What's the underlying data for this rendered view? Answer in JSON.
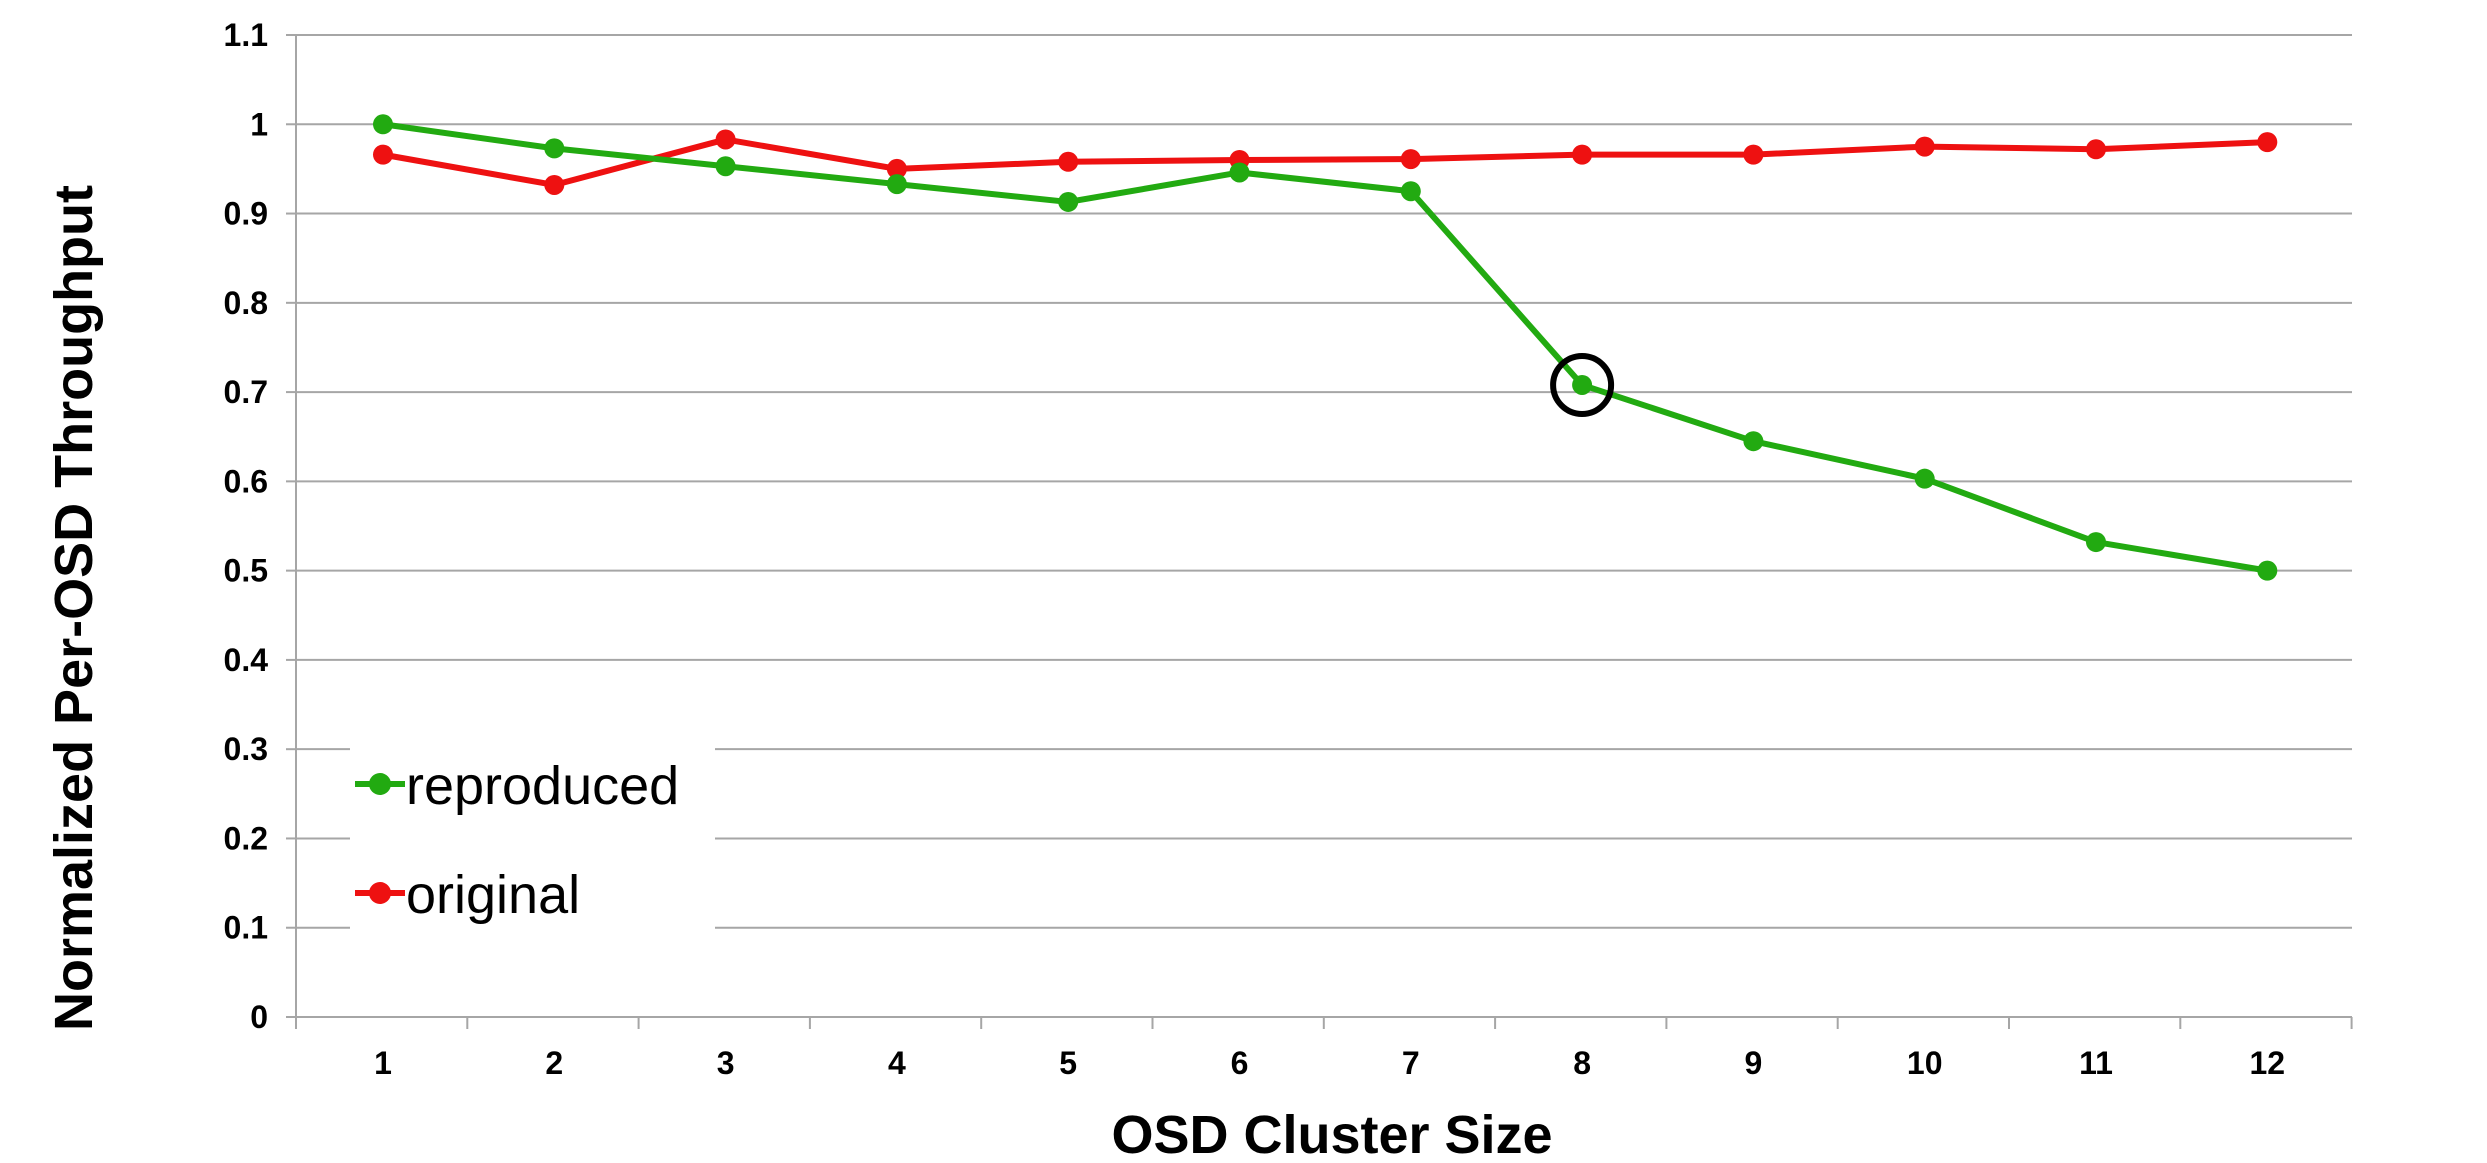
{
  "chart_data": {
    "type": "line",
    "title": "",
    "xlabel": "OSD Cluster Size",
    "ylabel": "Normalized Per-OSD Throughput",
    "categories": [
      "1",
      "2",
      "3",
      "4",
      "5",
      "6",
      "7",
      "8",
      "9",
      "10",
      "11",
      "12"
    ],
    "ylim": [
      0,
      1.1
    ],
    "yticks": [
      "0",
      "0.1",
      "0.2",
      "0.3",
      "0.4",
      "0.5",
      "0.6",
      "0.7",
      "0.8",
      "0.9",
      "1",
      "1.1"
    ],
    "grid": true,
    "legend_position": "bottom-left",
    "series": [
      {
        "name": "reproduced",
        "color": "#22aa11",
        "values": [
          1.0,
          0.973,
          0.953,
          0.933,
          0.913,
          0.946,
          0.925,
          0.708,
          0.645,
          0.603,
          0.532,
          0.5
        ]
      },
      {
        "name": "original",
        "color": "#ee1111",
        "values": [
          0.966,
          0.932,
          0.983,
          0.95,
          0.958,
          0.96,
          0.961,
          0.966,
          0.966,
          0.975,
          0.972,
          0.98
        ]
      }
    ],
    "annotation": {
      "type": "circle",
      "series": "reproduced",
      "category": "8"
    }
  }
}
